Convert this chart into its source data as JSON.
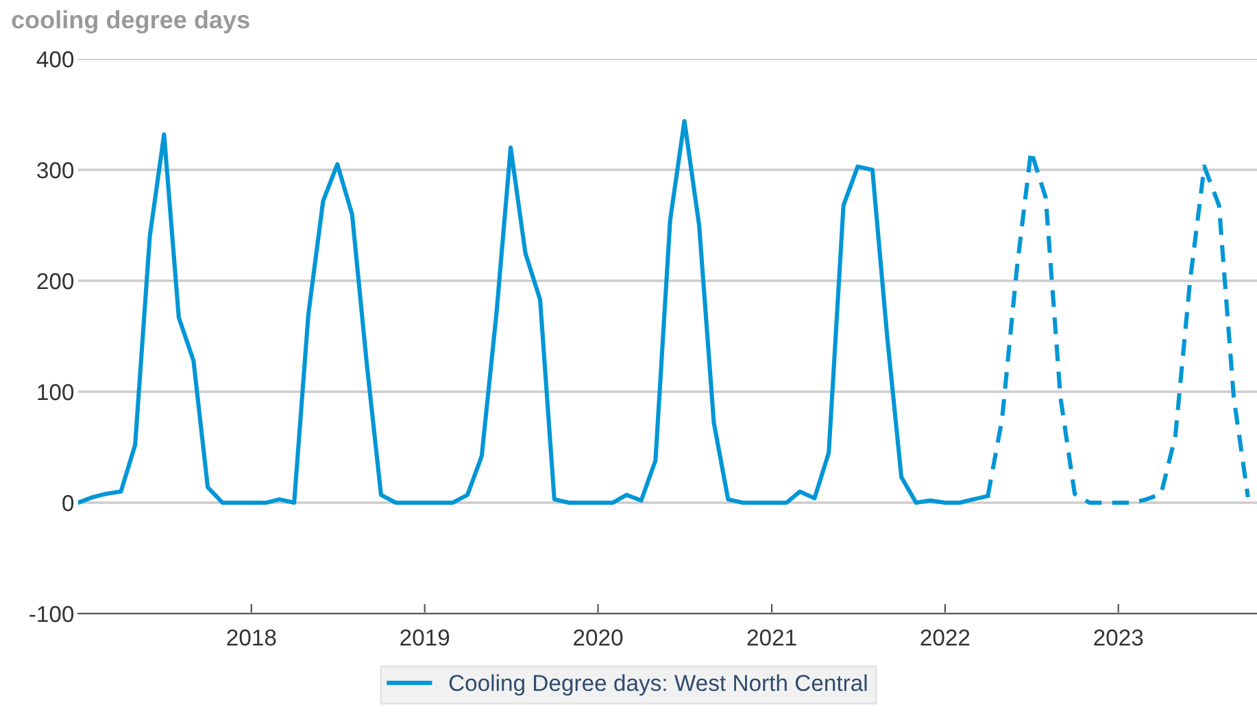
{
  "chart_data": {
    "type": "line",
    "title": "cooling degree days",
    "ylim": [
      -100,
      400
    ],
    "yticks": [
      -100,
      0,
      100,
      200,
      300,
      400
    ],
    "xlim": [
      "2017-01-01",
      "2023-10-20"
    ],
    "xticks": [
      {
        "value": "2018-01-01",
        "label": "2018"
      },
      {
        "value": "2019-01-01",
        "label": "2019"
      },
      {
        "value": "2020-01-01",
        "label": "2020"
      },
      {
        "value": "2021-01-01",
        "label": "2021"
      },
      {
        "value": "2022-01-01",
        "label": "2022"
      },
      {
        "value": "2023-01-01",
        "label": "2023"
      }
    ],
    "grid": "y",
    "legend": "bottom",
    "marker": "none",
    "series": [
      {
        "name": "Cooling Degree days: West North Central",
        "color": "#0096d6",
        "line_style": "solid",
        "x": [
          "2017-01",
          "2017-02",
          "2017-03",
          "2017-04",
          "2017-05",
          "2017-06",
          "2017-07",
          "2017-08",
          "2017-09",
          "2017-10",
          "2017-11",
          "2017-12",
          "2018-01",
          "2018-02",
          "2018-03",
          "2018-04",
          "2018-05",
          "2018-06",
          "2018-07",
          "2018-08",
          "2018-09",
          "2018-10",
          "2018-11",
          "2018-12",
          "2019-01",
          "2019-02",
          "2019-03",
          "2019-04",
          "2019-05",
          "2019-06",
          "2019-07",
          "2019-08",
          "2019-09",
          "2019-10",
          "2019-11",
          "2019-12",
          "2020-01",
          "2020-02",
          "2020-03",
          "2020-04",
          "2020-05",
          "2020-06",
          "2020-07",
          "2020-08",
          "2020-09",
          "2020-10",
          "2020-11",
          "2020-12",
          "2021-01",
          "2021-02",
          "2021-03",
          "2021-04",
          "2021-05",
          "2021-06",
          "2021-07",
          "2021-08",
          "2021-09",
          "2021-10",
          "2021-11",
          "2021-12",
          "2022-01",
          "2022-02",
          "2022-03",
          "2022-04"
        ],
        "values": [
          0,
          5,
          8,
          10,
          52,
          240,
          332,
          167,
          128,
          14,
          0,
          0,
          0,
          0,
          3,
          0,
          170,
          272,
          305,
          260,
          125,
          7,
          0,
          0,
          0,
          0,
          0,
          7,
          42,
          170,
          320,
          225,
          183,
          3,
          0,
          0,
          0,
          0,
          7,
          2,
          38,
          255,
          344,
          250,
          72,
          3,
          0,
          0,
          0,
          0,
          10,
          4,
          45,
          268,
          303,
          300,
          150,
          23,
          0,
          2,
          0,
          0,
          3,
          6
        ]
      },
      {
        "color": "#0096d6",
        "line_style": "dashed",
        "x": [
          "2022-04",
          "2022-05",
          "2022-06",
          "2022-07",
          "2022-08",
          "2022-09",
          "2022-10",
          "2022-11",
          "2022-12",
          "2023-01",
          "2023-02",
          "2023-03",
          "2023-04",
          "2023-05",
          "2023-06",
          "2023-07",
          "2023-08",
          "2023-09",
          "2023-10"
        ],
        "values": [
          6,
          75,
          210,
          317,
          275,
          95,
          8,
          0,
          0,
          0,
          0,
          3,
          8,
          60,
          200,
          303,
          268,
          95,
          5
        ]
      }
    ]
  }
}
